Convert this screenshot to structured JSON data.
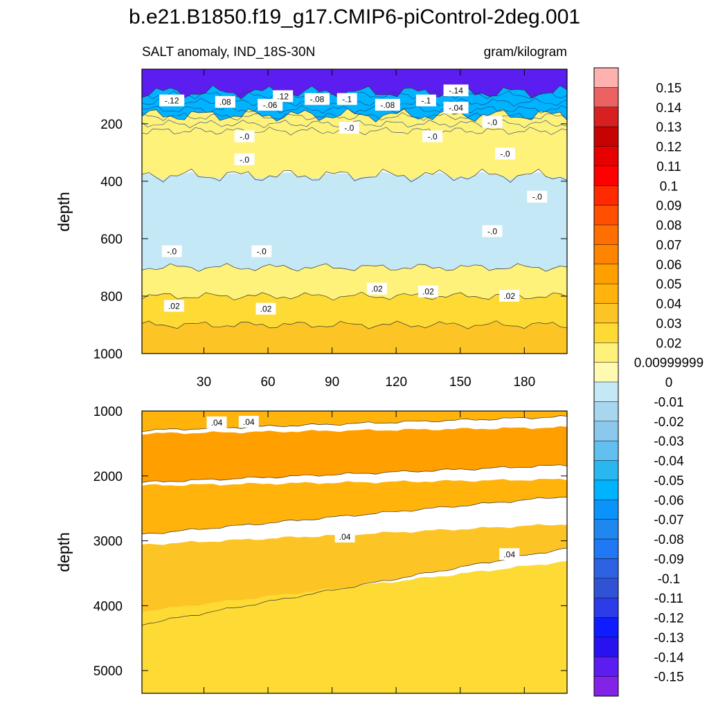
{
  "title": "b.e21.B1850.f19_g17.CMIP6-piControl-2deg.001",
  "subtitle_left": "SALT anomaly, IND_18S-30N",
  "subtitle_right": "gram/kilogram",
  "chart_data": [
    {
      "type": "heatmap",
      "name": "upper panel",
      "ylabel": "depth",
      "xlim": [
        1,
        200
      ],
      "ylim": [
        1000,
        10
      ],
      "x_ticks": [
        30,
        60,
        90,
        120,
        150,
        180
      ],
      "y_ticks": [
        200,
        400,
        600,
        800,
        1000
      ],
      "value_bands": [
        {
          "depth_from": 10,
          "depth_to": 90,
          "value": -0.15
        },
        {
          "depth_from": 90,
          "depth_to": 170,
          "value": -0.06
        },
        {
          "depth_from": 170,
          "depth_to": 380,
          "value": 0.01
        },
        {
          "depth_from": 380,
          "depth_to": 700,
          "value": -0.005
        },
        {
          "depth_from": 700,
          "depth_to": 800,
          "value": 0.01
        },
        {
          "depth_from": 800,
          "depth_to": 900,
          "value": 0.02
        },
        {
          "depth_from": 900,
          "depth_to": 1000,
          "value": 0.03
        }
      ],
      "contour_labels": [
        {
          "text": "-.12",
          "x": 15,
          "depth": 120
        },
        {
          "text": ".08",
          "x": 40,
          "depth": 125
        },
        {
          "text": "-.06",
          "x": 61,
          "depth": 135
        },
        {
          "text": ".12",
          "x": 67,
          "depth": 105
        },
        {
          "text": "-.08",
          "x": 83,
          "depth": 115
        },
        {
          "text": "-.1",
          "x": 97,
          "depth": 115
        },
        {
          "text": "-.08",
          "x": 116,
          "depth": 135
        },
        {
          "text": "-.1",
          "x": 134,
          "depth": 120
        },
        {
          "text": "-.14",
          "x": 148,
          "depth": 85
        },
        {
          "text": "-.04",
          "x": 148,
          "depth": 145
        },
        {
          "text": "-.0",
          "x": 98,
          "depth": 215
        },
        {
          "text": "-.0",
          "x": 49,
          "depth": 245
        },
        {
          "text": "-.0",
          "x": 49,
          "depth": 325
        },
        {
          "text": "-.0",
          "x": 137,
          "depth": 245
        },
        {
          "text": "-.0",
          "x": 165,
          "depth": 195
        },
        {
          "text": "-.0",
          "x": 171,
          "depth": 305
        },
        {
          "text": "-.0",
          "x": 186,
          "depth": 455
        },
        {
          "text": "-.0",
          "x": 165,
          "depth": 575
        },
        {
          "text": "-.0",
          "x": 15,
          "depth": 645
        },
        {
          "text": "-.0",
          "x": 57,
          "depth": 645
        },
        {
          "text": ".02",
          "x": 111,
          "depth": 775
        },
        {
          "text": ".02",
          "x": 135,
          "depth": 785
        },
        {
          "text": ".02",
          "x": 173,
          "depth": 800
        },
        {
          "text": ".02",
          "x": 16,
          "depth": 835
        },
        {
          "text": ".02",
          "x": 59,
          "depth": 845
        }
      ]
    },
    {
      "type": "heatmap",
      "name": "lower panel",
      "ylabel": "depth",
      "xlim": [
        1,
        200
      ],
      "ylim": [
        5350,
        1000
      ],
      "y_ticks": [
        1000,
        2000,
        3000,
        4000,
        5000
      ],
      "value_bands": [
        {
          "depth_from": 1000,
          "depth_to": 1300,
          "value": 0.04
        },
        {
          "depth_from": 1300,
          "depth_to": 2100,
          "value": 0.05
        },
        {
          "depth_from": 2100,
          "depth_to": 2900,
          "value": 0.04
        },
        {
          "depth_from": 2900,
          "depth_to": 3700,
          "value": 0.03
        },
        {
          "depth_from": 3700,
          "depth_to": 5350,
          "value": 0.02
        }
      ],
      "contour_labels": [
        {
          "text": ".04",
          "x": 36,
          "depth": 1180
        },
        {
          "text": ".04",
          "x": 51,
          "depth": 1170
        },
        {
          "text": ".04",
          "x": 96,
          "depth": 2940
        },
        {
          "text": ".04",
          "x": 173,
          "depth": 3210
        }
      ]
    }
  ],
  "colorbar": {
    "levels": [
      "0.15",
      "0.14",
      "0.13",
      "0.12",
      "0.11",
      "0.1",
      "0.09",
      "0.08",
      "0.07",
      "0.06",
      "0.05",
      "0.04",
      "0.03",
      "0.02",
      "0.00999999",
      "0",
      "-0.01",
      "-0.02",
      "-0.03",
      "-0.04",
      "-0.05",
      "-0.06",
      "-0.07",
      "-0.08",
      "-0.09",
      "-0.1",
      "-0.11",
      "-0.12",
      "-0.13",
      "-0.14",
      "-0.15"
    ],
    "colors": [
      "#fdb2b0",
      "#ec6161",
      "#d92020",
      "#c60303",
      "#e60000",
      "#ff0000",
      "#ff2a00",
      "#ff5000",
      "#ff6e00",
      "#ff8500",
      "#ffa000",
      "#ffb30b",
      "#fdc426",
      "#fdda34",
      "#fff27a",
      "#fffab0",
      "#c4e8f5",
      "#a7d7ef",
      "#8ac8ee",
      "#62c0f0",
      "#2ab7ef",
      "#00b3ff",
      "#0a94fb",
      "#1f87f0",
      "#2078f4",
      "#2d62e3",
      "#3053d5",
      "#2c3ce8",
      "#0f1cff",
      "#2812ef",
      "#5c1df0",
      "#8423e8"
    ]
  }
}
